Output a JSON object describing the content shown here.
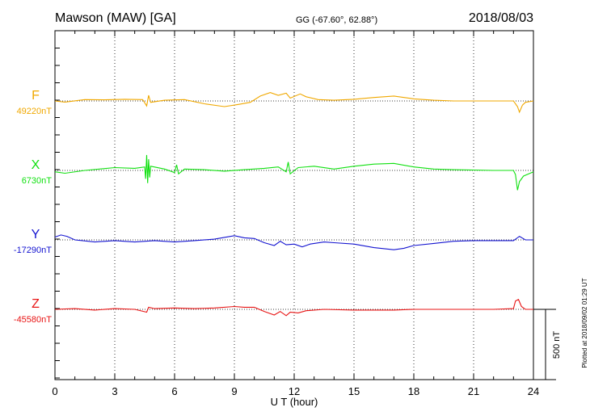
{
  "header": {
    "station": "Mawson (MAW)  [GA]",
    "coords": "GG (-67.60°,  62.88°)",
    "date": "2018/08/03"
  },
  "side_note": "Plotted at 2018/09/02 01:29 UT",
  "scale_label": "500 nT",
  "chart_data": {
    "type": "line",
    "xlabel": "U T (hour)",
    "xlim": [
      0,
      24
    ],
    "xticks": [
      "0",
      "3",
      "6",
      "9",
      "12",
      "15",
      "18",
      "21",
      "24"
    ],
    "scale_bar_nT": 500,
    "grid": "dotted vertical every 3 hours",
    "series": [
      {
        "name": "F",
        "baseline_label": "49220nT",
        "baseline_nT": 49220,
        "color": "#f0a800",
        "points": [
          [
            0,
            0
          ],
          [
            0.5,
            -8
          ],
          [
            1.5,
            10
          ],
          [
            2.5,
            8
          ],
          [
            3.5,
            12
          ],
          [
            4.4,
            10
          ],
          [
            4.6,
            -35
          ],
          [
            4.7,
            40
          ],
          [
            4.8,
            -10
          ],
          [
            5.5,
            5
          ],
          [
            6.5,
            10
          ],
          [
            7.5,
            -20
          ],
          [
            8.5,
            -40
          ],
          [
            9.2,
            -25
          ],
          [
            9.8,
            -10
          ],
          [
            10.3,
            35
          ],
          [
            10.8,
            60
          ],
          [
            11.2,
            40
          ],
          [
            11.6,
            55
          ],
          [
            11.8,
            20
          ],
          [
            12.3,
            50
          ],
          [
            12.6,
            30
          ],
          [
            13.2,
            10
          ],
          [
            14,
            5
          ],
          [
            15,
            12
          ],
          [
            16,
            25
          ],
          [
            17,
            35
          ],
          [
            18,
            15
          ],
          [
            19,
            5
          ],
          [
            20,
            0
          ],
          [
            21,
            0
          ],
          [
            22,
            0
          ],
          [
            23.0,
            0
          ],
          [
            23.2,
            -40
          ],
          [
            23.3,
            -80
          ],
          [
            23.45,
            -30
          ],
          [
            23.6,
            -10
          ],
          [
            24,
            0
          ]
        ]
      },
      {
        "name": "X",
        "baseline_label": "6730nT",
        "baseline_nT": 6730,
        "color": "#10e010",
        "points": [
          [
            0,
            -10
          ],
          [
            0.5,
            -20
          ],
          [
            1.5,
            0
          ],
          [
            3,
            20
          ],
          [
            4,
            15
          ],
          [
            4.5,
            25
          ],
          [
            4.55,
            -60
          ],
          [
            4.6,
            110
          ],
          [
            4.65,
            -90
          ],
          [
            4.7,
            80
          ],
          [
            4.75,
            -50
          ],
          [
            4.8,
            30
          ],
          [
            5.5,
            10
          ],
          [
            6.0,
            -15
          ],
          [
            6.1,
            40
          ],
          [
            6.2,
            -25
          ],
          [
            6.5,
            10
          ],
          [
            7.5,
            5
          ],
          [
            8.5,
            -5
          ],
          [
            9.5,
            5
          ],
          [
            10.5,
            15
          ],
          [
            11.2,
            25
          ],
          [
            11.6,
            -10
          ],
          [
            11.7,
            60
          ],
          [
            11.8,
            -25
          ],
          [
            12.2,
            20
          ],
          [
            13,
            30
          ],
          [
            14,
            10
          ],
          [
            15,
            30
          ],
          [
            16,
            45
          ],
          [
            17,
            50
          ],
          [
            18,
            25
          ],
          [
            19,
            10
          ],
          [
            20,
            5
          ],
          [
            22,
            0
          ],
          [
            23.0,
            0
          ],
          [
            23.1,
            -30
          ],
          [
            23.2,
            -140
          ],
          [
            23.3,
            -80
          ],
          [
            23.5,
            -40
          ],
          [
            24,
            -10
          ]
        ]
      },
      {
        "name": "Y",
        "baseline_label": "-17290nT",
        "baseline_nT": -17290,
        "color": "#1414d0",
        "points": [
          [
            0,
            20
          ],
          [
            0.3,
            35
          ],
          [
            0.6,
            25
          ],
          [
            1,
            0
          ],
          [
            2,
            -15
          ],
          [
            3,
            -5
          ],
          [
            4,
            -15
          ],
          [
            5,
            -5
          ],
          [
            6,
            -15
          ],
          [
            7,
            -5
          ],
          [
            8,
            5
          ],
          [
            9,
            30
          ],
          [
            9.5,
            15
          ],
          [
            10,
            10
          ],
          [
            10.5,
            -20
          ],
          [
            11,
            -40
          ],
          [
            11.3,
            -10
          ],
          [
            11.6,
            -35
          ],
          [
            12,
            -30
          ],
          [
            12.4,
            -50
          ],
          [
            12.8,
            -30
          ],
          [
            13.5,
            -15
          ],
          [
            14,
            -20
          ],
          [
            15,
            -30
          ],
          [
            16,
            -55
          ],
          [
            17,
            -70
          ],
          [
            17.5,
            -60
          ],
          [
            18,
            -40
          ],
          [
            19,
            -25
          ],
          [
            20,
            -10
          ],
          [
            21,
            -5
          ],
          [
            22,
            -5
          ],
          [
            23,
            -5
          ],
          [
            23.3,
            25
          ],
          [
            23.6,
            0
          ],
          [
            24,
            0
          ]
        ]
      },
      {
        "name": "Z",
        "baseline_label": "-45580nT",
        "baseline_nT": -45580,
        "color": "#e81414",
        "points": [
          [
            0,
            0
          ],
          [
            1,
            5
          ],
          [
            2,
            -5
          ],
          [
            3,
            5
          ],
          [
            4,
            0
          ],
          [
            4.6,
            -20
          ],
          [
            4.7,
            15
          ],
          [
            5,
            5
          ],
          [
            6,
            10
          ],
          [
            7,
            5
          ],
          [
            8,
            10
          ],
          [
            9,
            20
          ],
          [
            9.5,
            15
          ],
          [
            10,
            15
          ],
          [
            10.5,
            -15
          ],
          [
            11,
            -40
          ],
          [
            11.3,
            -15
          ],
          [
            11.6,
            -45
          ],
          [
            11.8,
            -20
          ],
          [
            12.2,
            -25
          ],
          [
            12.6,
            -10
          ],
          [
            13.5,
            0
          ],
          [
            15,
            -5
          ],
          [
            16,
            -5
          ],
          [
            17,
            -5
          ],
          [
            18,
            0
          ],
          [
            20,
            0
          ],
          [
            22,
            0
          ],
          [
            23.0,
            5
          ],
          [
            23.1,
            60
          ],
          [
            23.25,
            70
          ],
          [
            23.4,
            20
          ],
          [
            23.6,
            0
          ],
          [
            24,
            0
          ]
        ]
      }
    ]
  }
}
